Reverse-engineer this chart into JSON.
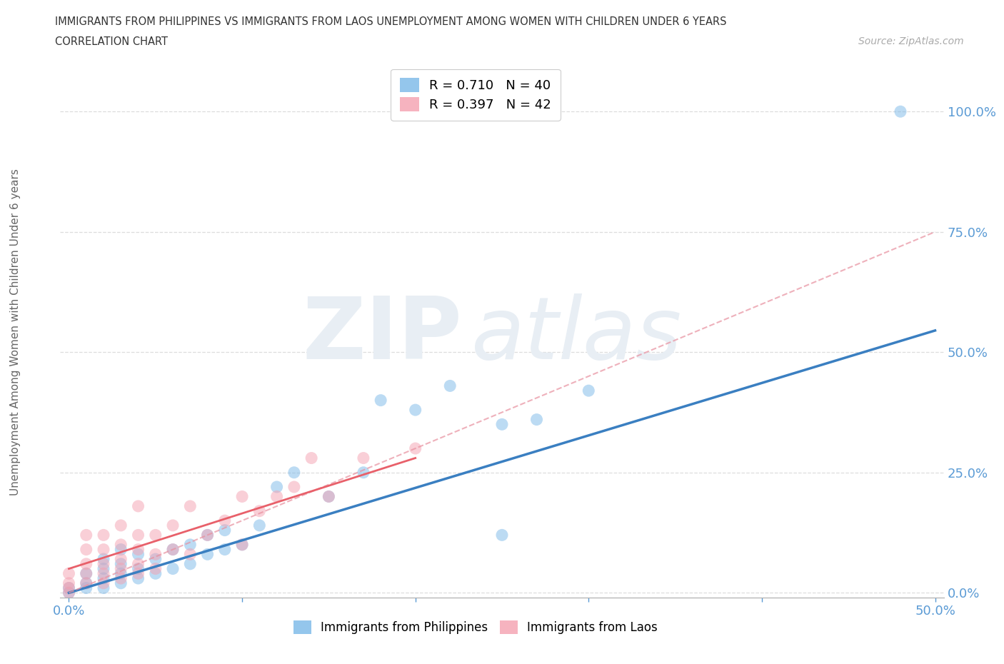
{
  "title_line1": "IMMIGRANTS FROM PHILIPPINES VS IMMIGRANTS FROM LAOS UNEMPLOYMENT AMONG WOMEN WITH CHILDREN UNDER 6 YEARS",
  "title_line2": "CORRELATION CHART",
  "source_text": "Source: ZipAtlas.com",
  "ylabel": "Unemployment Among Women with Children Under 6 years",
  "xlim": [
    -0.005,
    0.505
  ],
  "ylim": [
    -0.01,
    1.08
  ],
  "xtick_positions": [
    0.0,
    0.1,
    0.2,
    0.3,
    0.4,
    0.5
  ],
  "xtick_labels": [
    "0.0%",
    "",
    "",
    "",
    "",
    "50.0%"
  ],
  "ytick_positions": [
    0.0,
    0.25,
    0.5,
    0.75,
    1.0
  ],
  "ytick_labels": [
    "0.0%",
    "25.0%",
    "50.0%",
    "75.0%",
    "100.0%"
  ],
  "legend_r1": "R = 0.710",
  "legend_n1": "N = 40",
  "legend_r2": "R = 0.397",
  "legend_n2": "N = 42",
  "color_philippines": "#7ab8e8",
  "color_laos": "#f4a0b0",
  "color_laos_line": "#e8909f",
  "philippines_scatter_x": [
    0.0,
    0.0,
    0.01,
    0.01,
    0.01,
    0.02,
    0.02,
    0.02,
    0.02,
    0.03,
    0.03,
    0.03,
    0.03,
    0.04,
    0.04,
    0.04,
    0.05,
    0.05,
    0.06,
    0.06,
    0.07,
    0.07,
    0.08,
    0.08,
    0.09,
    0.09,
    0.1,
    0.11,
    0.12,
    0.13,
    0.15,
    0.17,
    0.18,
    0.2,
    0.22,
    0.25,
    0.27,
    0.3,
    0.48,
    0.25
  ],
  "philippines_scatter_y": [
    0.0,
    0.01,
    0.01,
    0.02,
    0.04,
    0.01,
    0.03,
    0.05,
    0.07,
    0.02,
    0.04,
    0.06,
    0.09,
    0.03,
    0.05,
    0.08,
    0.04,
    0.07,
    0.05,
    0.09,
    0.06,
    0.1,
    0.08,
    0.12,
    0.09,
    0.13,
    0.1,
    0.14,
    0.22,
    0.25,
    0.2,
    0.25,
    0.4,
    0.38,
    0.43,
    0.35,
    0.36,
    0.42,
    1.0,
    0.12
  ],
  "laos_scatter_x": [
    0.0,
    0.0,
    0.0,
    0.0,
    0.01,
    0.01,
    0.01,
    0.01,
    0.01,
    0.02,
    0.02,
    0.02,
    0.02,
    0.02,
    0.03,
    0.03,
    0.03,
    0.03,
    0.03,
    0.04,
    0.04,
    0.04,
    0.04,
    0.04,
    0.05,
    0.05,
    0.05,
    0.06,
    0.06,
    0.07,
    0.07,
    0.08,
    0.09,
    0.1,
    0.1,
    0.11,
    0.12,
    0.13,
    0.14,
    0.15,
    0.17,
    0.2
  ],
  "laos_scatter_y": [
    0.0,
    0.01,
    0.02,
    0.04,
    0.02,
    0.04,
    0.06,
    0.09,
    0.12,
    0.02,
    0.04,
    0.06,
    0.09,
    0.12,
    0.03,
    0.05,
    0.07,
    0.1,
    0.14,
    0.04,
    0.06,
    0.09,
    0.12,
    0.18,
    0.05,
    0.08,
    0.12,
    0.09,
    0.14,
    0.08,
    0.18,
    0.12,
    0.15,
    0.1,
    0.2,
    0.17,
    0.2,
    0.22,
    0.28,
    0.2,
    0.28,
    0.3
  ],
  "philippines_line_x": [
    0.0,
    0.5
  ],
  "philippines_line_y": [
    0.0,
    0.545
  ],
  "laos_line_x": [
    0.0,
    0.2
  ],
  "laos_line_y": [
    0.05,
    0.28
  ],
  "laos_dashed_line_x": [
    0.0,
    0.5
  ],
  "laos_dashed_line_y": [
    0.0,
    0.75
  ],
  "background_color": "#ffffff",
  "grid_color": "#dddddd",
  "tick_color": "#5b9bd5",
  "label_color": "#666666",
  "title_color": "#333333"
}
